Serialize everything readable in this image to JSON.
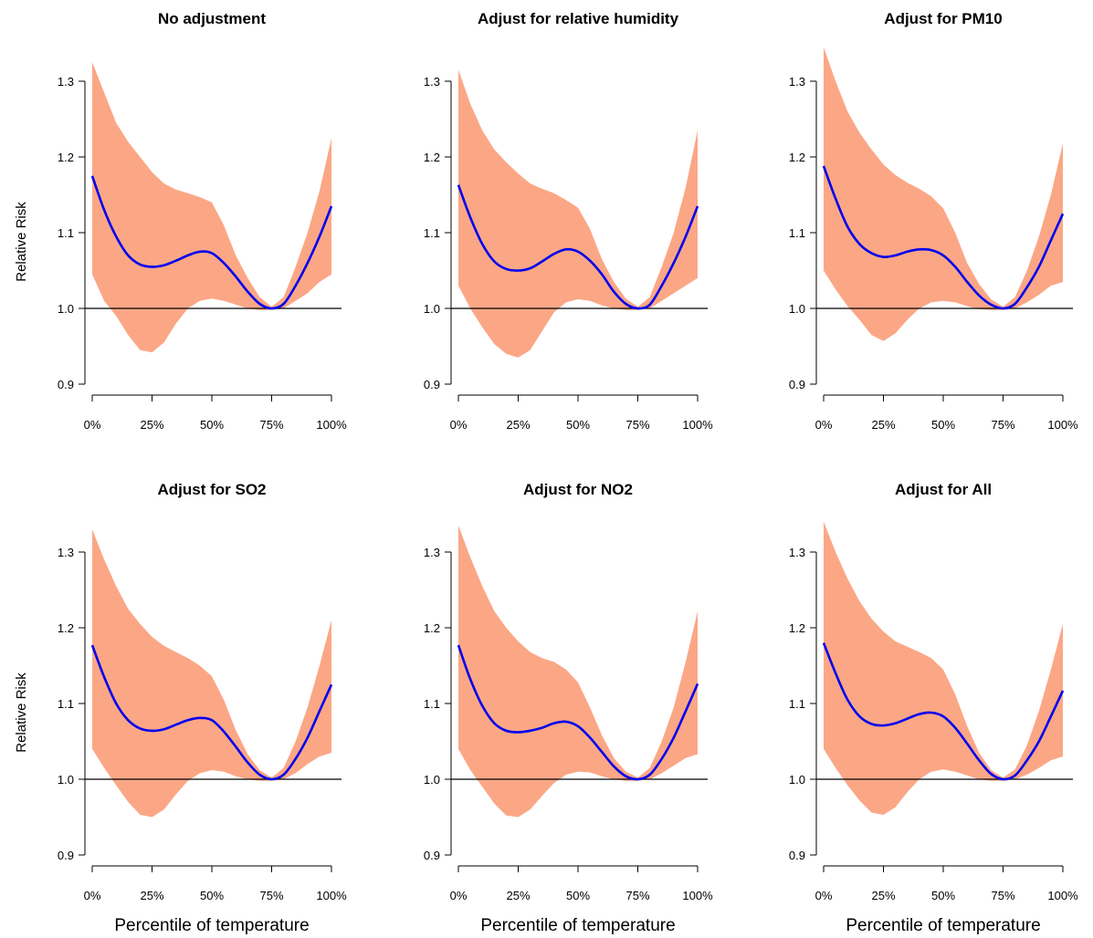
{
  "chart_data": [
    {
      "type": "line",
      "title": "No adjustment",
      "xlabel": "",
      "ylabel": "Relative Risk",
      "x": [
        0,
        5,
        10,
        15,
        20,
        25,
        30,
        35,
        40,
        45,
        50,
        55,
        60,
        65,
        70,
        75,
        80,
        85,
        90,
        95,
        100
      ],
      "xticks": [
        "0%",
        "25%",
        "50%",
        "75%",
        "100%"
      ],
      "yticks": [
        "0.9",
        "1.0",
        "1.1",
        "1.2",
        "1.3"
      ],
      "xlim": [
        0,
        100
      ],
      "ylim": [
        0.9,
        1.3
      ],
      "reference_line": 1.0,
      "series": [
        {
          "values": [
            1.175,
            1.13,
            1.095,
            1.07,
            1.058,
            1.055,
            1.057,
            1.063,
            1.07,
            1.075,
            1.073,
            1.06,
            1.042,
            1.022,
            1.006,
            1.0,
            1.006,
            1.03,
            1.06,
            1.095,
            1.135
          ],
          "color": "#0000ee"
        }
      ],
      "ci_upper": [
        1.325,
        1.285,
        1.245,
        1.22,
        1.2,
        1.18,
        1.165,
        1.157,
        1.152,
        1.147,
        1.14,
        1.11,
        1.07,
        1.04,
        1.015,
        1.002,
        1.015,
        1.055,
        1.1,
        1.155,
        1.225
      ],
      "ci_lower": [
        1.045,
        1.01,
        0.99,
        0.965,
        0.945,
        0.942,
        0.955,
        0.98,
        1.0,
        1.01,
        1.013,
        1.01,
        1.005,
        1.0,
        0.998,
        0.998,
        1.0,
        1.01,
        1.02,
        1.035,
        1.045
      ],
      "band_color": "#fba786"
    },
    {
      "type": "line",
      "title": "Adjust for relative humidity",
      "xlabel": "",
      "ylabel": "",
      "x": [
        0,
        5,
        10,
        15,
        20,
        25,
        30,
        35,
        40,
        45,
        50,
        55,
        60,
        65,
        70,
        75,
        80,
        85,
        90,
        95,
        100
      ],
      "xticks": [
        "0%",
        "25%",
        "50%",
        "75%",
        "100%"
      ],
      "yticks": [
        "0.9",
        "1.0",
        "1.1",
        "1.2",
        "1.3"
      ],
      "xlim": [
        0,
        100
      ],
      "ylim": [
        0.9,
        1.3
      ],
      "reference_line": 1.0,
      "series": [
        {
          "values": [
            1.163,
            1.12,
            1.085,
            1.062,
            1.052,
            1.05,
            1.053,
            1.062,
            1.072,
            1.078,
            1.075,
            1.063,
            1.045,
            1.022,
            1.006,
            1.0,
            1.005,
            1.03,
            1.06,
            1.095,
            1.135
          ],
          "color": "#0000ee"
        }
      ],
      "ci_upper": [
        1.315,
        1.27,
        1.235,
        1.21,
        1.193,
        1.178,
        1.165,
        1.158,
        1.152,
        1.143,
        1.133,
        1.105,
        1.065,
        1.035,
        1.013,
        1.002,
        1.015,
        1.055,
        1.1,
        1.16,
        1.235
      ],
      "ci_lower": [
        1.03,
        1.0,
        0.975,
        0.953,
        0.94,
        0.935,
        0.945,
        0.97,
        0.995,
        1.008,
        1.012,
        1.01,
        1.004,
        1.0,
        0.998,
        0.998,
        1.0,
        1.01,
        1.02,
        1.03,
        1.04
      ],
      "band_color": "#fba786"
    },
    {
      "type": "line",
      "title": "Adjust for PM10",
      "xlabel": "",
      "ylabel": "",
      "x": [
        0,
        5,
        10,
        15,
        20,
        25,
        30,
        35,
        40,
        45,
        50,
        55,
        60,
        65,
        70,
        75,
        80,
        85,
        90,
        95,
        100
      ],
      "xticks": [
        "0%",
        "25%",
        "50%",
        "75%",
        "100%"
      ],
      "yticks": [
        "0.9",
        "1.0",
        "1.1",
        "1.2",
        "1.3"
      ],
      "xlim": [
        0,
        100
      ],
      "ylim": [
        0.9,
        1.3
      ],
      "reference_line": 1.0,
      "series": [
        {
          "values": [
            1.188,
            1.145,
            1.108,
            1.085,
            1.073,
            1.068,
            1.07,
            1.075,
            1.078,
            1.077,
            1.07,
            1.055,
            1.035,
            1.017,
            1.005,
            1.0,
            1.006,
            1.028,
            1.055,
            1.09,
            1.125
          ],
          "color": "#0000ee"
        }
      ],
      "ci_upper": [
        1.345,
        1.3,
        1.26,
        1.232,
        1.21,
        1.19,
        1.176,
        1.166,
        1.158,
        1.148,
        1.132,
        1.1,
        1.06,
        1.032,
        1.012,
        1.002,
        1.015,
        1.05,
        1.095,
        1.15,
        1.218
      ],
      "ci_lower": [
        1.05,
        1.025,
        1.003,
        0.985,
        0.965,
        0.957,
        0.967,
        0.985,
        1.0,
        1.008,
        1.01,
        1.008,
        1.003,
        0.999,
        0.998,
        0.998,
        1.0,
        1.008,
        1.018,
        1.03,
        1.035
      ],
      "band_color": "#fba786"
    },
    {
      "type": "line",
      "title": "Adjust for SO2",
      "xlabel": "Percentile of temperature",
      "ylabel": "Relative Risk",
      "x": [
        0,
        5,
        10,
        15,
        20,
        25,
        30,
        35,
        40,
        45,
        50,
        55,
        60,
        65,
        70,
        75,
        80,
        85,
        90,
        95,
        100
      ],
      "xticks": [
        "0%",
        "25%",
        "50%",
        "75%",
        "100%"
      ],
      "yticks": [
        "0.9",
        "1.0",
        "1.1",
        "1.2",
        "1.3"
      ],
      "xlim": [
        0,
        100
      ],
      "ylim": [
        0.9,
        1.3
      ],
      "reference_line": 1.0,
      "series": [
        {
          "values": [
            1.177,
            1.135,
            1.1,
            1.078,
            1.067,
            1.064,
            1.066,
            1.072,
            1.078,
            1.081,
            1.078,
            1.063,
            1.043,
            1.022,
            1.006,
            1.0,
            1.006,
            1.027,
            1.055,
            1.09,
            1.125
          ],
          "color": "#0000ee"
        }
      ],
      "ci_upper": [
        1.33,
        1.29,
        1.255,
        1.225,
        1.205,
        1.188,
        1.176,
        1.168,
        1.16,
        1.15,
        1.136,
        1.105,
        1.065,
        1.033,
        1.012,
        1.002,
        1.015,
        1.05,
        1.095,
        1.15,
        1.21
      ],
      "ci_lower": [
        1.04,
        1.015,
        0.992,
        0.97,
        0.953,
        0.95,
        0.96,
        0.98,
        0.998,
        1.008,
        1.012,
        1.01,
        1.004,
        1.0,
        0.998,
        0.998,
        1.0,
        1.008,
        1.02,
        1.03,
        1.035
      ],
      "band_color": "#fba786"
    },
    {
      "type": "line",
      "title": "Adjust for NO2",
      "xlabel": "Percentile of temperature",
      "ylabel": "",
      "x": [
        0,
        5,
        10,
        15,
        20,
        25,
        30,
        35,
        40,
        45,
        50,
        55,
        60,
        65,
        70,
        75,
        80,
        85,
        90,
        95,
        100
      ],
      "xticks": [
        "0%",
        "25%",
        "50%",
        "75%",
        "100%"
      ],
      "yticks": [
        "0.9",
        "1.0",
        "1.1",
        "1.2",
        "1.3"
      ],
      "xlim": [
        0,
        100
      ],
      "ylim": [
        0.9,
        1.3
      ],
      "reference_line": 1.0,
      "series": [
        {
          "values": [
            1.177,
            1.132,
            1.097,
            1.074,
            1.064,
            1.062,
            1.064,
            1.068,
            1.074,
            1.076,
            1.07,
            1.055,
            1.036,
            1.017,
            1.004,
            1.0,
            1.006,
            1.027,
            1.055,
            1.09,
            1.126
          ],
          "color": "#0000ee"
        }
      ],
      "ci_upper": [
        1.335,
        1.293,
        1.255,
        1.222,
        1.2,
        1.182,
        1.168,
        1.16,
        1.155,
        1.145,
        1.128,
        1.095,
        1.058,
        1.028,
        1.01,
        1.002,
        1.015,
        1.05,
        1.095,
        1.155,
        1.222
      ],
      "ci_lower": [
        1.04,
        1.012,
        0.99,
        0.968,
        0.952,
        0.95,
        0.96,
        0.978,
        0.995,
        1.006,
        1.01,
        1.009,
        1.004,
        1.0,
        0.998,
        0.998,
        1.0,
        1.008,
        1.018,
        1.028,
        1.033
      ],
      "band_color": "#fba786"
    },
    {
      "type": "line",
      "title": "Adjust for All",
      "xlabel": "Percentile of temperature",
      "ylabel": "",
      "x": [
        0,
        5,
        10,
        15,
        20,
        25,
        30,
        35,
        40,
        45,
        50,
        55,
        60,
        65,
        70,
        75,
        80,
        85,
        90,
        95,
        100
      ],
      "xticks": [
        "0%",
        "25%",
        "50%",
        "75%",
        "100%"
      ],
      "yticks": [
        "0.9",
        "1.0",
        "1.1",
        "1.2",
        "1.3"
      ],
      "xlim": [
        0,
        100
      ],
      "ylim": [
        0.9,
        1.3
      ],
      "reference_line": 1.0,
      "series": [
        {
          "values": [
            1.18,
            1.14,
            1.105,
            1.083,
            1.073,
            1.071,
            1.074,
            1.08,
            1.086,
            1.088,
            1.083,
            1.068,
            1.047,
            1.025,
            1.007,
            1.0,
            1.005,
            1.025,
            1.05,
            1.083,
            1.117
          ],
          "color": "#0000ee"
        }
      ],
      "ci_upper": [
        1.34,
        1.3,
        1.265,
        1.235,
        1.212,
        1.195,
        1.182,
        1.175,
        1.168,
        1.16,
        1.145,
        1.112,
        1.07,
        1.035,
        1.012,
        1.002,
        1.013,
        1.045,
        1.09,
        1.145,
        1.205
      ],
      "ci_lower": [
        1.04,
        1.015,
        0.992,
        0.972,
        0.956,
        0.953,
        0.963,
        0.983,
        1.0,
        1.01,
        1.013,
        1.01,
        1.005,
        1.0,
        0.998,
        0.998,
        1.0,
        1.006,
        1.015,
        1.025,
        1.03
      ],
      "band_color": "#fba786"
    }
  ]
}
